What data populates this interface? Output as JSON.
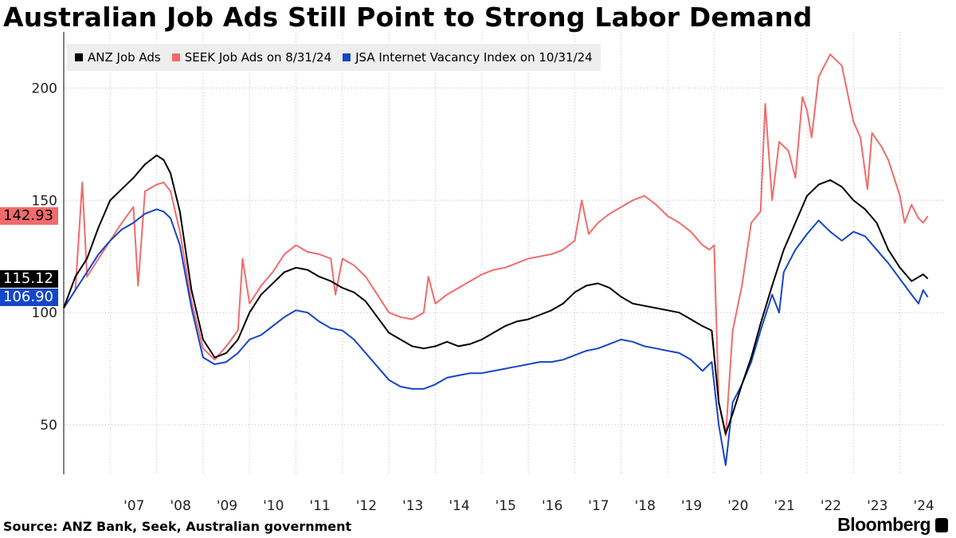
{
  "chart_data": {
    "type": "line",
    "title": "Australian Job Ads Still Point to Strong Labor Demand",
    "xlabel": "",
    "ylabel": "",
    "xlim": [
      2006.0,
      2024.95
    ],
    "ylim": [
      28,
      225
    ],
    "y_ticks": [
      50,
      100,
      150,
      200
    ],
    "x_ticks": [
      2007,
      2008,
      2009,
      2010,
      2011,
      2012,
      2013,
      2014,
      2015,
      2016,
      2017,
      2018,
      2019,
      2020,
      2021,
      2022,
      2023,
      2024
    ],
    "x_tick_labels": [
      "'07",
      "'08",
      "'09",
      "'10",
      "'11",
      "'12",
      "'13",
      "'14",
      "'15",
      "'16",
      "'17",
      "'18",
      "'19",
      "'20",
      "'21",
      "'22",
      "'23",
      "'24"
    ],
    "grid": true,
    "legend_position": "top-left",
    "series": [
      {
        "name": "ANZ Job Ads",
        "color": "#000000",
        "last_value": "115.12",
        "points": [
          [
            2006.0,
            102
          ],
          [
            2006.25,
            116
          ],
          [
            2006.5,
            124
          ],
          [
            2006.75,
            138
          ],
          [
            2007.0,
            150
          ],
          [
            2007.25,
            155
          ],
          [
            2007.5,
            160
          ],
          [
            2007.75,
            166
          ],
          [
            2008.0,
            170
          ],
          [
            2008.15,
            168
          ],
          [
            2008.3,
            162
          ],
          [
            2008.5,
            145
          ],
          [
            2008.75,
            110
          ],
          [
            2009.0,
            88
          ],
          [
            2009.25,
            80
          ],
          [
            2009.5,
            82
          ],
          [
            2009.75,
            88
          ],
          [
            2010.0,
            100
          ],
          [
            2010.25,
            108
          ],
          [
            2010.5,
            113
          ],
          [
            2010.75,
            118
          ],
          [
            2011.0,
            120
          ],
          [
            2011.25,
            119
          ],
          [
            2011.5,
            116
          ],
          [
            2011.75,
            114
          ],
          [
            2012.0,
            111
          ],
          [
            2012.25,
            109
          ],
          [
            2012.5,
            105
          ],
          [
            2012.75,
            98
          ],
          [
            2013.0,
            91
          ],
          [
            2013.25,
            88
          ],
          [
            2013.5,
            85
          ],
          [
            2013.75,
            84
          ],
          [
            2014.0,
            85
          ],
          [
            2014.25,
            87
          ],
          [
            2014.5,
            85
          ],
          [
            2014.75,
            86
          ],
          [
            2015.0,
            88
          ],
          [
            2015.25,
            91
          ],
          [
            2015.5,
            94
          ],
          [
            2015.75,
            96
          ],
          [
            2016.0,
            97
          ],
          [
            2016.25,
            99
          ],
          [
            2016.5,
            101
          ],
          [
            2016.75,
            104
          ],
          [
            2017.0,
            109
          ],
          [
            2017.25,
            112
          ],
          [
            2017.5,
            113
          ],
          [
            2017.75,
            111
          ],
          [
            2018.0,
            107
          ],
          [
            2018.25,
            104
          ],
          [
            2018.5,
            103
          ],
          [
            2018.75,
            102
          ],
          [
            2019.0,
            101
          ],
          [
            2019.25,
            100
          ],
          [
            2019.5,
            97
          ],
          [
            2019.75,
            94
          ],
          [
            2019.95,
            92
          ],
          [
            2020.1,
            60
          ],
          [
            2020.25,
            46
          ],
          [
            2020.4,
            55
          ],
          [
            2020.6,
            68
          ],
          [
            2020.8,
            80
          ],
          [
            2021.0,
            95
          ],
          [
            2021.25,
            112
          ],
          [
            2021.5,
            128
          ],
          [
            2021.75,
            140
          ],
          [
            2022.0,
            152
          ],
          [
            2022.25,
            157
          ],
          [
            2022.5,
            159
          ],
          [
            2022.75,
            156
          ],
          [
            2023.0,
            150
          ],
          [
            2023.25,
            146
          ],
          [
            2023.5,
            140
          ],
          [
            2023.75,
            128
          ],
          [
            2024.0,
            120
          ],
          [
            2024.25,
            114
          ],
          [
            2024.5,
            117
          ],
          [
            2024.6,
            115.12
          ]
        ]
      },
      {
        "name": "SEEK Job Ads on 8/31/24",
        "color": "#f26b6b",
        "last_value": "142.93",
        "points": [
          [
            2006.0,
            102
          ],
          [
            2006.25,
            110
          ],
          [
            2006.4,
            158
          ],
          [
            2006.5,
            116
          ],
          [
            2006.75,
            124
          ],
          [
            2007.0,
            132
          ],
          [
            2007.25,
            140
          ],
          [
            2007.5,
            147
          ],
          [
            2007.6,
            112
          ],
          [
            2007.75,
            154
          ],
          [
            2008.0,
            157
          ],
          [
            2008.15,
            158
          ],
          [
            2008.3,
            154
          ],
          [
            2008.5,
            136
          ],
          [
            2008.75,
            105
          ],
          [
            2009.0,
            84
          ],
          [
            2009.25,
            79
          ],
          [
            2009.5,
            85
          ],
          [
            2009.75,
            92
          ],
          [
            2009.85,
            124
          ],
          [
            2010.0,
            104
          ],
          [
            2010.25,
            112
          ],
          [
            2010.5,
            118
          ],
          [
            2010.75,
            126
          ],
          [
            2011.0,
            130
          ],
          [
            2011.25,
            127
          ],
          [
            2011.5,
            126
          ],
          [
            2011.75,
            124
          ],
          [
            2011.85,
            108
          ],
          [
            2012.0,
            124
          ],
          [
            2012.25,
            121
          ],
          [
            2012.5,
            116
          ],
          [
            2012.75,
            108
          ],
          [
            2013.0,
            100
          ],
          [
            2013.25,
            98
          ],
          [
            2013.5,
            97
          ],
          [
            2013.75,
            100
          ],
          [
            2013.85,
            116
          ],
          [
            2014.0,
            104
          ],
          [
            2014.25,
            108
          ],
          [
            2014.5,
            111
          ],
          [
            2014.75,
            114
          ],
          [
            2015.0,
            117
          ],
          [
            2015.25,
            119
          ],
          [
            2015.5,
            120
          ],
          [
            2015.75,
            122
          ],
          [
            2016.0,
            124
          ],
          [
            2016.25,
            125
          ],
          [
            2016.5,
            126
          ],
          [
            2016.75,
            128
          ],
          [
            2017.0,
            132
          ],
          [
            2017.15,
            150
          ],
          [
            2017.3,
            135
          ],
          [
            2017.5,
            140
          ],
          [
            2017.75,
            144
          ],
          [
            2018.0,
            147
          ],
          [
            2018.25,
            150
          ],
          [
            2018.5,
            152
          ],
          [
            2018.75,
            148
          ],
          [
            2019.0,
            143
          ],
          [
            2019.25,
            140
          ],
          [
            2019.5,
            136
          ],
          [
            2019.75,
            130
          ],
          [
            2019.9,
            128
          ],
          [
            2020.0,
            130
          ],
          [
            2020.1,
            60
          ],
          [
            2020.25,
            45
          ],
          [
            2020.4,
            92
          ],
          [
            2020.6,
            112
          ],
          [
            2020.8,
            140
          ],
          [
            2021.0,
            145
          ],
          [
            2021.1,
            193
          ],
          [
            2021.25,
            150
          ],
          [
            2021.4,
            176
          ],
          [
            2021.6,
            172
          ],
          [
            2021.75,
            160
          ],
          [
            2021.9,
            196
          ],
          [
            2022.0,
            190
          ],
          [
            2022.1,
            178
          ],
          [
            2022.25,
            205
          ],
          [
            2022.5,
            215
          ],
          [
            2022.75,
            210
          ],
          [
            2023.0,
            185
          ],
          [
            2023.15,
            178
          ],
          [
            2023.3,
            155
          ],
          [
            2023.4,
            180
          ],
          [
            2023.6,
            174
          ],
          [
            2023.75,
            168
          ],
          [
            2024.0,
            152
          ],
          [
            2024.1,
            140
          ],
          [
            2024.25,
            148
          ],
          [
            2024.4,
            142
          ],
          [
            2024.5,
            140
          ],
          [
            2024.6,
            142.93
          ]
        ]
      },
      {
        "name": "JSA Internet Vacancy Index on 10/31/24",
        "color": "#1446c8",
        "last_value": "106.90",
        "points": [
          [
            2006.0,
            102
          ],
          [
            2006.25,
            110
          ],
          [
            2006.5,
            118
          ],
          [
            2006.75,
            126
          ],
          [
            2007.0,
            132
          ],
          [
            2007.25,
            137
          ],
          [
            2007.5,
            140
          ],
          [
            2007.75,
            144
          ],
          [
            2008.0,
            146
          ],
          [
            2008.15,
            145
          ],
          [
            2008.3,
            142
          ],
          [
            2008.5,
            130
          ],
          [
            2008.75,
            102
          ],
          [
            2009.0,
            80
          ],
          [
            2009.25,
            77
          ],
          [
            2009.5,
            78
          ],
          [
            2009.75,
            82
          ],
          [
            2010.0,
            88
          ],
          [
            2010.25,
            90
          ],
          [
            2010.5,
            94
          ],
          [
            2010.75,
            98
          ],
          [
            2011.0,
            101
          ],
          [
            2011.25,
            100
          ],
          [
            2011.5,
            96
          ],
          [
            2011.75,
            93
          ],
          [
            2012.0,
            92
          ],
          [
            2012.25,
            88
          ],
          [
            2012.5,
            82
          ],
          [
            2012.75,
            76
          ],
          [
            2013.0,
            70
          ],
          [
            2013.25,
            67
          ],
          [
            2013.5,
            66
          ],
          [
            2013.75,
            66
          ],
          [
            2014.0,
            68
          ],
          [
            2014.25,
            71
          ],
          [
            2014.5,
            72
          ],
          [
            2014.75,
            73
          ],
          [
            2015.0,
            73
          ],
          [
            2015.25,
            74
          ],
          [
            2015.5,
            75
          ],
          [
            2015.75,
            76
          ],
          [
            2016.0,
            77
          ],
          [
            2016.25,
            78
          ],
          [
            2016.5,
            78
          ],
          [
            2016.75,
            79
          ],
          [
            2017.0,
            81
          ],
          [
            2017.25,
            83
          ],
          [
            2017.5,
            84
          ],
          [
            2017.75,
            86
          ],
          [
            2018.0,
            88
          ],
          [
            2018.25,
            87
          ],
          [
            2018.5,
            85
          ],
          [
            2018.75,
            84
          ],
          [
            2019.0,
            83
          ],
          [
            2019.25,
            82
          ],
          [
            2019.5,
            79
          ],
          [
            2019.75,
            74
          ],
          [
            2019.95,
            78
          ],
          [
            2020.1,
            50
          ],
          [
            2020.25,
            32
          ],
          [
            2020.4,
            60
          ],
          [
            2020.6,
            68
          ],
          [
            2020.8,
            78
          ],
          [
            2021.0,
            92
          ],
          [
            2021.25,
            108
          ],
          [
            2021.4,
            100
          ],
          [
            2021.5,
            118
          ],
          [
            2021.75,
            128
          ],
          [
            2022.0,
            135
          ],
          [
            2022.25,
            141
          ],
          [
            2022.5,
            136
          ],
          [
            2022.75,
            132
          ],
          [
            2023.0,
            136
          ],
          [
            2023.25,
            134
          ],
          [
            2023.5,
            128
          ],
          [
            2023.75,
            122
          ],
          [
            2024.0,
            115
          ],
          [
            2024.25,
            108
          ],
          [
            2024.4,
            104
          ],
          [
            2024.5,
            110
          ],
          [
            2024.6,
            106.9
          ]
        ]
      }
    ]
  },
  "footer": {
    "source": "Source: ANZ Bank, Seek, Australian government",
    "brand": "Bloomberg"
  },
  "icons": {
    "brand_icon": "bloomberg-terminal-icon"
  }
}
